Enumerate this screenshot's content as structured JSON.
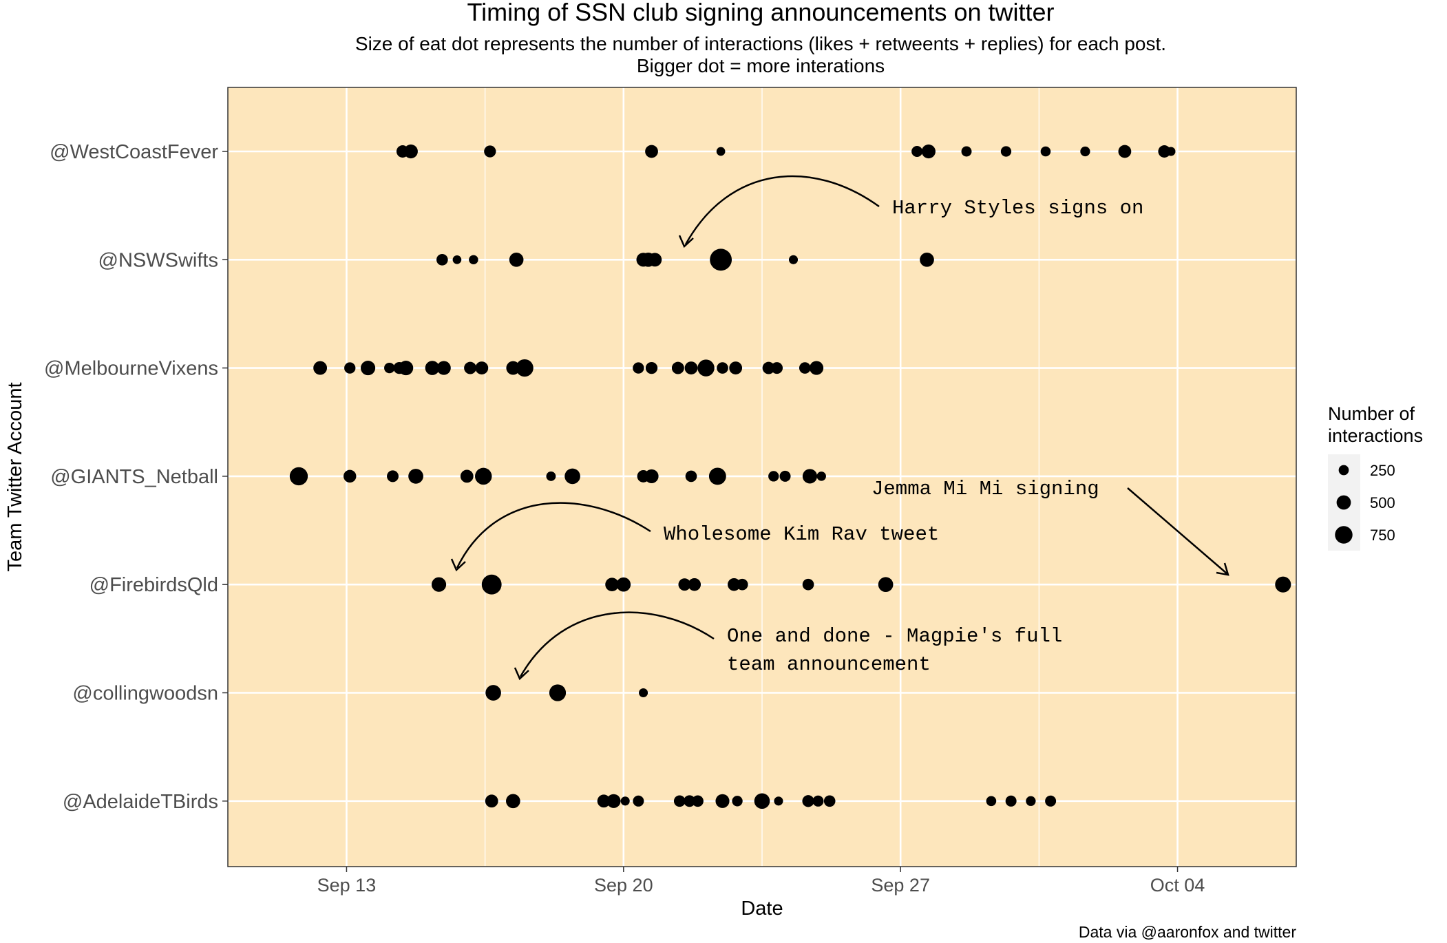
{
  "chart_data": {
    "type": "scatter",
    "title": "Timing of SSN club signing announcements on twitter",
    "subtitle_line1": "Size of eat dot represents the number of interactions (likes + retweents + replies) for each post.",
    "subtitle_line2": "Bigger dot = more interations",
    "xlabel": "Date",
    "ylabel": "Team Twitter Account",
    "caption": "Data via @aaronfox and twitter",
    "x_axis": {
      "type": "date",
      "range": [
        "2020-09-10",
        "2020-10-07"
      ],
      "ticks": [
        "2020-09-13",
        "2020-09-20",
        "2020-09-27",
        "2020-10-04"
      ],
      "tick_labels": [
        "Sep 13",
        "Sep 20",
        "Sep 27",
        "Oct 04"
      ]
    },
    "categories": [
      "@WestCoastFever",
      "@NSWSwifts",
      "@MelbourneVixens",
      "@GIANTS_Netball",
      "@FirebirdsQld",
      "@collingwoodsn",
      "@AdelaideTBirds"
    ],
    "legend": {
      "title_line1": "Number of",
      "title_line2": "interactions",
      "entries": [
        {
          "label": "250",
          "value": 250
        },
        {
          "label": "500",
          "value": 500
        },
        {
          "label": "750",
          "value": 750
        }
      ],
      "placement": "right"
    },
    "panel_background": "#fde6bc",
    "grid": true,
    "points": [
      {
        "account": "@WestCoastFever",
        "date": "2020-09-14 10:00",
        "interactions": 300
      },
      {
        "account": "@WestCoastFever",
        "date": "2020-09-14 15:00",
        "interactions": 380
      },
      {
        "account": "@WestCoastFever",
        "date": "2020-09-16 15:00",
        "interactions": 280
      },
      {
        "account": "@WestCoastFever",
        "date": "2020-09-20 17:00",
        "interactions": 330
      },
      {
        "account": "@WestCoastFever",
        "date": "2020-09-22 11:00",
        "interactions": 150
      },
      {
        "account": "@WestCoastFever",
        "date": "2020-09-27 10:00",
        "interactions": 240
      },
      {
        "account": "@WestCoastFever",
        "date": "2020-09-27 17:00",
        "interactions": 380
      },
      {
        "account": "@WestCoastFever",
        "date": "2020-09-28 16:00",
        "interactions": 210
      },
      {
        "account": "@WestCoastFever",
        "date": "2020-09-29 16:00",
        "interactions": 220
      },
      {
        "account": "@WestCoastFever",
        "date": "2020-09-30 16:00",
        "interactions": 200
      },
      {
        "account": "@WestCoastFever",
        "date": "2020-10-01 16:00",
        "interactions": 190
      },
      {
        "account": "@WestCoastFever",
        "date": "2020-10-02 16:00",
        "interactions": 330
      },
      {
        "account": "@WestCoastFever",
        "date": "2020-10-03 16:00",
        "interactions": 300
      },
      {
        "account": "@WestCoastFever",
        "date": "2020-10-03 20:00",
        "interactions": 160
      },
      {
        "account": "@NSWSwifts",
        "date": "2020-09-15 10:00",
        "interactions": 260
      },
      {
        "account": "@NSWSwifts",
        "date": "2020-09-15 19:00",
        "interactions": 150
      },
      {
        "account": "@NSWSwifts",
        "date": "2020-09-16 05:00",
        "interactions": 170
      },
      {
        "account": "@NSWSwifts",
        "date": "2020-09-17 07:00",
        "interactions": 400
      },
      {
        "account": "@NSWSwifts",
        "date": "2020-09-20 12:00",
        "interactions": 380
      },
      {
        "account": "@NSWSwifts",
        "date": "2020-09-20 15:00",
        "interactions": 400
      },
      {
        "account": "@NSWSwifts",
        "date": "2020-09-20 19:00",
        "interactions": 370
      },
      {
        "account": "@NSWSwifts",
        "date": "2020-09-22 11:00",
        "interactions": 950
      },
      {
        "account": "@NSWSwifts",
        "date": "2020-09-24 07:00",
        "interactions": 160
      },
      {
        "account": "@NSWSwifts",
        "date": "2020-09-27 16:00",
        "interactions": 400
      },
      {
        "account": "@MelbourneVixens",
        "date": "2020-09-12 08:00",
        "interactions": 370
      },
      {
        "account": "@MelbourneVixens",
        "date": "2020-09-13 02:00",
        "interactions": 250
      },
      {
        "account": "@MelbourneVixens",
        "date": "2020-09-13 13:00",
        "interactions": 420
      },
      {
        "account": "@MelbourneVixens",
        "date": "2020-09-14 02:00",
        "interactions": 220
      },
      {
        "account": "@MelbourneVixens",
        "date": "2020-09-14 08:00",
        "interactions": 280
      },
      {
        "account": "@MelbourneVixens",
        "date": "2020-09-14 12:00",
        "interactions": 420
      },
      {
        "account": "@MelbourneVixens",
        "date": "2020-09-15 04:00",
        "interactions": 400
      },
      {
        "account": "@MelbourneVixens",
        "date": "2020-09-15 11:00",
        "interactions": 380
      },
      {
        "account": "@MelbourneVixens",
        "date": "2020-09-16 03:00",
        "interactions": 300
      },
      {
        "account": "@MelbourneVixens",
        "date": "2020-09-16 10:00",
        "interactions": 330
      },
      {
        "account": "@MelbourneVixens",
        "date": "2020-09-17 05:00",
        "interactions": 370
      },
      {
        "account": "@MelbourneVixens",
        "date": "2020-09-17 12:00",
        "interactions": 600
      },
      {
        "account": "@MelbourneVixens",
        "date": "2020-09-20 09:00",
        "interactions": 250
      },
      {
        "account": "@MelbourneVixens",
        "date": "2020-09-20 17:00",
        "interactions": 280
      },
      {
        "account": "@MelbourneVixens",
        "date": "2020-09-21 09:00",
        "interactions": 300
      },
      {
        "account": "@MelbourneVixens",
        "date": "2020-09-21 17:00",
        "interactions": 330
      },
      {
        "account": "@MelbourneVixens",
        "date": "2020-09-22 02:00",
        "interactions": 560
      },
      {
        "account": "@MelbourneVixens",
        "date": "2020-09-22 12:00",
        "interactions": 260
      },
      {
        "account": "@MelbourneVixens",
        "date": "2020-09-22 20:00",
        "interactions": 330
      },
      {
        "account": "@MelbourneVixens",
        "date": "2020-09-23 16:00",
        "interactions": 300
      },
      {
        "account": "@MelbourneVixens",
        "date": "2020-09-23 21:00",
        "interactions": 270
      },
      {
        "account": "@MelbourneVixens",
        "date": "2020-09-24 14:00",
        "interactions": 260
      },
      {
        "account": "@MelbourneVixens",
        "date": "2020-09-24 21:00",
        "interactions": 380
      },
      {
        "account": "@GIANTS_Netball",
        "date": "2020-09-11 19:00",
        "interactions": 650
      },
      {
        "account": "@GIANTS_Netball",
        "date": "2020-09-13 02:00",
        "interactions": 320
      },
      {
        "account": "@GIANTS_Netball",
        "date": "2020-09-14 04:00",
        "interactions": 270
      },
      {
        "account": "@GIANTS_Netball",
        "date": "2020-09-14 18:00",
        "interactions": 440
      },
      {
        "account": "@GIANTS_Netball",
        "date": "2020-09-16 01:00",
        "interactions": 330
      },
      {
        "account": "@GIANTS_Netball",
        "date": "2020-09-16 11:00",
        "interactions": 560
      },
      {
        "account": "@GIANTS_Netball",
        "date": "2020-09-18 04:00",
        "interactions": 180
      },
      {
        "account": "@GIANTS_Netball",
        "date": "2020-09-18 17:00",
        "interactions": 480
      },
      {
        "account": "@GIANTS_Netball",
        "date": "2020-09-20 12:00",
        "interactions": 300
      },
      {
        "account": "@GIANTS_Netball",
        "date": "2020-09-20 17:00",
        "interactions": 380
      },
      {
        "account": "@GIANTS_Netball",
        "date": "2020-09-21 17:00",
        "interactions": 260
      },
      {
        "account": "@GIANTS_Netball",
        "date": "2020-09-22 09:00",
        "interactions": 580
      },
      {
        "account": "@GIANTS_Netball",
        "date": "2020-09-23 19:00",
        "interactions": 220
      },
      {
        "account": "@GIANTS_Netball",
        "date": "2020-09-24 02:00",
        "interactions": 240
      },
      {
        "account": "@GIANTS_Netball",
        "date": "2020-09-24 17:00",
        "interactions": 420
      },
      {
        "account": "@GIANTS_Netball",
        "date": "2020-09-25 00:00",
        "interactions": 170
      },
      {
        "account": "@FirebirdsQld",
        "date": "2020-09-15 08:00",
        "interactions": 420
      },
      {
        "account": "@FirebirdsQld",
        "date": "2020-09-16 16:00",
        "interactions": 780
      },
      {
        "account": "@FirebirdsQld",
        "date": "2020-09-19 17:00",
        "interactions": 360
      },
      {
        "account": "@FirebirdsQld",
        "date": "2020-09-20 00:00",
        "interactions": 400
      },
      {
        "account": "@FirebirdsQld",
        "date": "2020-09-21 13:00",
        "interactions": 300
      },
      {
        "account": "@FirebirdsQld",
        "date": "2020-09-21 19:00",
        "interactions": 320
      },
      {
        "account": "@FirebirdsQld",
        "date": "2020-09-22 19:00",
        "interactions": 320
      },
      {
        "account": "@FirebirdsQld",
        "date": "2020-09-23 00:00",
        "interactions": 260
      },
      {
        "account": "@FirebirdsQld",
        "date": "2020-09-24 16:00",
        "interactions": 260
      },
      {
        "account": "@FirebirdsQld",
        "date": "2020-09-26 15:00",
        "interactions": 440
      },
      {
        "account": "@FirebirdsQld",
        "date": "2020-10-06 16:00",
        "interactions": 500
      },
      {
        "account": "@collingwoodsn",
        "date": "2020-09-16 17:00",
        "interactions": 480
      },
      {
        "account": "@collingwoodsn",
        "date": "2020-09-18 08:00",
        "interactions": 550
      },
      {
        "account": "@collingwoodsn",
        "date": "2020-09-20 12:00",
        "interactions": 160
      },
      {
        "account": "@AdelaideTBirds",
        "date": "2020-09-16 16:00",
        "interactions": 330
      },
      {
        "account": "@AdelaideTBirds",
        "date": "2020-09-17 05:00",
        "interactions": 400
      },
      {
        "account": "@AdelaideTBirds",
        "date": "2020-09-19 12:00",
        "interactions": 330
      },
      {
        "account": "@AdelaideTBirds",
        "date": "2020-09-19 18:00",
        "interactions": 380
      },
      {
        "account": "@AdelaideTBirds",
        "date": "2020-09-20 01:00",
        "interactions": 160
      },
      {
        "account": "@AdelaideTBirds",
        "date": "2020-09-20 09:00",
        "interactions": 240
      },
      {
        "account": "@AdelaideTBirds",
        "date": "2020-09-21 10:00",
        "interactions": 260
      },
      {
        "account": "@AdelaideTBirds",
        "date": "2020-09-21 16:00",
        "interactions": 270
      },
      {
        "account": "@AdelaideTBirds",
        "date": "2020-09-21 21:00",
        "interactions": 260
      },
      {
        "account": "@AdelaideTBirds",
        "date": "2020-09-22 12:00",
        "interactions": 380
      },
      {
        "account": "@AdelaideTBirds",
        "date": "2020-09-22 21:00",
        "interactions": 220
      },
      {
        "account": "@AdelaideTBirds",
        "date": "2020-09-23 12:00",
        "interactions": 480
      },
      {
        "account": "@AdelaideTBirds",
        "date": "2020-09-23 22:00",
        "interactions": 160
      },
      {
        "account": "@AdelaideTBirds",
        "date": "2020-09-24 16:00",
        "interactions": 280
      },
      {
        "account": "@AdelaideTBirds",
        "date": "2020-09-24 22:00",
        "interactions": 240
      },
      {
        "account": "@AdelaideTBirds",
        "date": "2020-09-25 05:00",
        "interactions": 260
      },
      {
        "account": "@AdelaideTBirds",
        "date": "2020-09-29 07:00",
        "interactions": 200
      },
      {
        "account": "@AdelaideTBirds",
        "date": "2020-09-29 19:00",
        "interactions": 240
      },
      {
        "account": "@AdelaideTBirds",
        "date": "2020-09-30 07:00",
        "interactions": 190
      },
      {
        "account": "@AdelaideTBirds",
        "date": "2020-09-30 19:00",
        "interactions": 240
      }
    ],
    "annotations": [
      {
        "text": "Harry Styles signs on",
        "target_account": "@NSWSwifts",
        "target_date": "2020-09-22 11:00"
      },
      {
        "text": "Wholesome Kim Rav tweet",
        "target_account": "@FirebirdsQld",
        "target_date": "2020-09-16 16:00"
      },
      {
        "text": "One and done - Magpie's full",
        "text_line2": "team announcement",
        "target_account": "@collingwoodsn",
        "target_date": "2020-09-18 08:00"
      },
      {
        "text": "Jemma Mi Mi signing",
        "target_account": "@FirebirdsQld",
        "target_date": "2020-10-06 16:00"
      }
    ]
  }
}
